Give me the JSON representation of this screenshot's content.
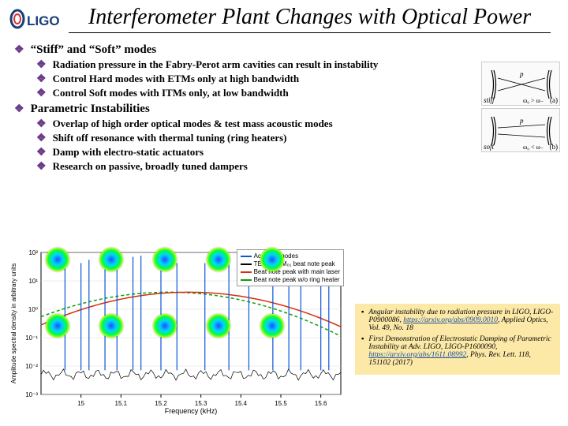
{
  "header": {
    "logo_text": "LIGO",
    "title": "Interferometer Plant Changes with Optical Power"
  },
  "sections": {
    "s1": {
      "heading": "“Stiff” and “Soft” modes",
      "items": {
        "i1": "Radiation pressure in the Fabry-Perot arm cavities can result in instability",
        "i2": "Control Hard modes with ETMs only at high bandwidth",
        "i3": "Control Soft modes with ITMs only, at low bandwidth"
      }
    },
    "s2": {
      "heading": "Parametric Instabilities",
      "items": {
        "i1": "Overlap of high order optical modes & test mass acoustic modes",
        "i2": "Shift off resonance with thermal tuning (ring heaters)",
        "i3": "Damp with electro-static actuators",
        "i4": "Research on passive, broadly tuned dampers"
      }
    }
  },
  "diagram": {
    "stiff_label": "stiff",
    "stiff_eq": "ω₀ > ω₋",
    "soft_label": "soft",
    "soft_eq": "ω₀ < ω₋",
    "a": "(a)",
    "b": "(b)",
    "p": "p"
  },
  "chart": {
    "ylabel": "Amplitude spectral density in arbitrary units",
    "xlabel": "Frequency (kHz)",
    "xmin": 14.9,
    "xmax": 15.65,
    "xticks": [
      "15",
      "15.1",
      "15.2",
      "15.3",
      "15.4",
      "15.5",
      "15.6"
    ],
    "ymin_exp": -3,
    "ymax_exp": 2,
    "yticks": [
      "10⁻³",
      "10⁻²",
      "10⁻¹",
      "10⁰",
      "10¹",
      "10²"
    ],
    "legend": {
      "l1": "Acoustic modes",
      "c1": "#0b55d6",
      "l2": "TEM₁₀ TEM₀₁ beat note peak",
      "c2": "#000000",
      "l3": "Beat note peak with main laser",
      "c3": "#d62f0e",
      "l4": "Beat note peak w/o ring heater",
      "c4": "#0aa00a"
    },
    "curves": {
      "gaussian_red": {
        "color": "#d62f0e",
        "center": 15.27,
        "sigma": 0.16,
        "height": 0.6
      },
      "gaussian_green": {
        "color": "#0aa00a",
        "center": 15.22,
        "sigma": 0.16,
        "height": 0.6,
        "dash": "4,3"
      }
    },
    "blue_peaks": [
      14.96,
      15.0,
      15.02,
      15.06,
      15.09,
      15.13,
      15.15,
      15.2,
      15.24,
      15.31,
      15.37,
      15.42,
      15.48,
      15.52,
      15.55,
      15.6,
      15.62
    ],
    "blue_color": "#0b55d6",
    "black_noise": -2.3,
    "background": "#ffffff",
    "grid_color": "#dddddd",
    "axis_color": "#000000",
    "mode_disc_count": 5
  },
  "refs": {
    "r1_a": "Angular instability due to radiation pressure in LIGO, LIGO-P0900086, ",
    "r1_link": "https://arxiv.org/abs/0909.0010",
    "r1_b": ", Applied Optics, Vol. 49, No. 18",
    "r2_a": "First Demonstration of Electrostatic Damping of Parametric Instability at Adv. LIGO, LIGO-P1600090, ",
    "r2_link": "https://arxiv.org/abs/1611.08992",
    "r2_b": ", Phys. Rev. Lett. 118, 151102 (2017)"
  }
}
